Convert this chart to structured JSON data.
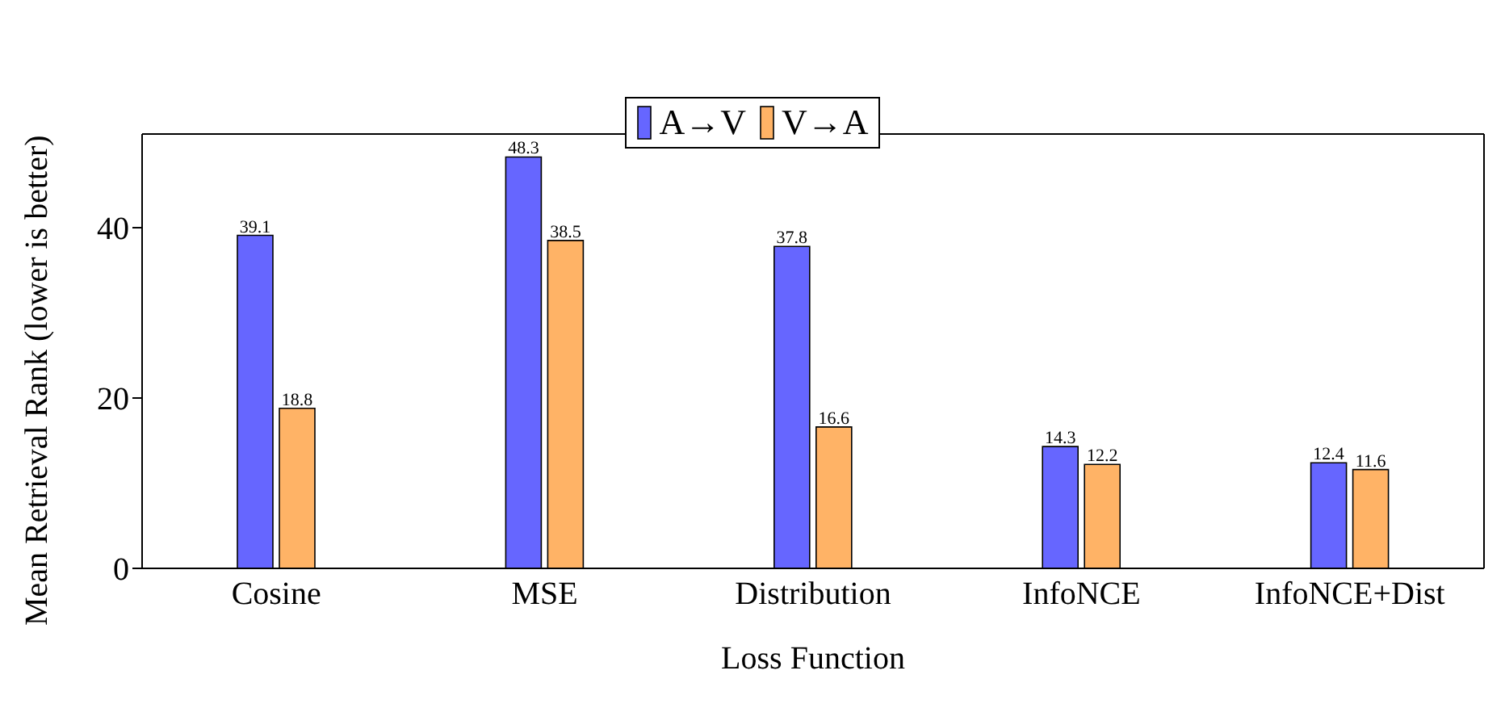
{
  "chart_data": {
    "type": "bar",
    "xlabel": "Loss Function",
    "ylabel": "Mean Retrieval Rank (lower is better)",
    "categories": [
      "Cosine",
      "MSE",
      "Distribution",
      "InfoNCE",
      "InfoNCE+Dist"
    ],
    "series": [
      {
        "name": "A→V",
        "color": "#6666ff",
        "values": [
          39.1,
          48.3,
          37.8,
          14.3,
          12.4
        ]
      },
      {
        "name": "V→A",
        "color": "#ffb366",
        "values": [
          18.8,
          38.5,
          16.6,
          12.2,
          11.6
        ]
      }
    ],
    "ylim": [
      0,
      51
    ],
    "yticks": [
      0,
      20,
      40
    ],
    "legend": "top",
    "data_labels": true
  }
}
